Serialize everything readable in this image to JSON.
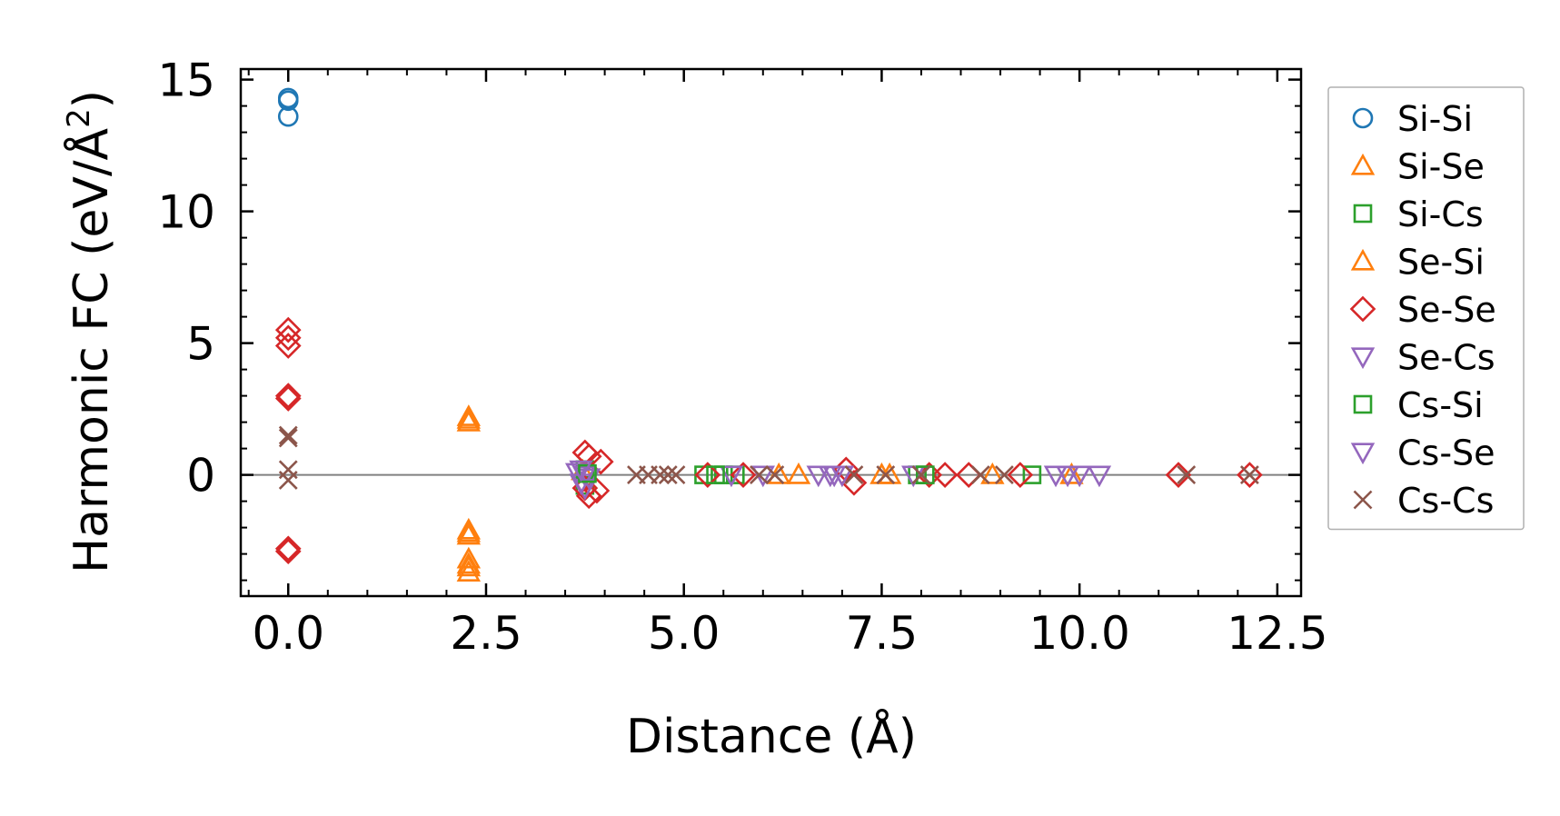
{
  "chart_data": {
    "type": "scatter",
    "title": "",
    "xlabel": "Distance (Å)",
    "ylabel_main": "Harmonic FC (eV/Å",
    "ylabel_sup": "2",
    "ylabel_close": ")",
    "xlim": [
      -0.6,
      12.8
    ],
    "ylim": [
      -4.6,
      15.4
    ],
    "xticks": [
      0.0,
      2.5,
      5.0,
      7.5,
      10.0,
      12.5
    ],
    "xtick_labels": [
      "0.0",
      "2.5",
      "5.0",
      "7.5",
      "10.0",
      "12.5"
    ],
    "yticks": [
      0,
      5,
      10,
      15
    ],
    "ytick_labels": [
      "0",
      "5",
      "10",
      "15"
    ],
    "reference_line_y": 0,
    "legend_position": "outside-right",
    "series": [
      {
        "name": "Si-Si",
        "marker": "circle",
        "color": "#1f77b4",
        "points": [
          [
            0.0,
            14.3
          ],
          [
            0.0,
            14.2
          ],
          [
            0.0,
            13.6
          ]
        ]
      },
      {
        "name": "Si-Se",
        "marker": "triangle-up",
        "color": "#ff7f0e",
        "points": [
          [
            2.28,
            2.2
          ],
          [
            2.28,
            2.0
          ],
          [
            2.28,
            -2.1
          ],
          [
            2.28,
            -2.3
          ],
          [
            2.28,
            -3.2
          ],
          [
            2.28,
            -3.5
          ],
          [
            2.28,
            -3.7
          ],
          [
            3.72,
            0.15
          ],
          [
            6.2,
            0.0
          ],
          [
            6.45,
            0.0
          ],
          [
            7.5,
            0.0
          ],
          [
            8.9,
            0.0
          ],
          [
            9.9,
            0.0
          ]
        ]
      },
      {
        "name": "Si-Cs",
        "marker": "square",
        "color": "#2ca02c",
        "points": [
          [
            3.75,
            0.2
          ],
          [
            3.75,
            -0.4
          ],
          [
            5.25,
            0.0
          ],
          [
            5.5,
            0.0
          ],
          [
            5.65,
            0.0
          ],
          [
            7.95,
            0.0
          ],
          [
            9.4,
            0.0
          ]
        ]
      },
      {
        "name": "Se-Si",
        "marker": "triangle-up",
        "color": "#ff7f0e",
        "points": [
          [
            2.28,
            2.1
          ],
          [
            2.28,
            -2.2
          ],
          [
            2.28,
            -3.4
          ],
          [
            7.6,
            0.0
          ]
        ]
      },
      {
        "name": "Se-Se",
        "marker": "diamond",
        "color": "#d62728",
        "points": [
          [
            0.0,
            5.5
          ],
          [
            0.0,
            5.2
          ],
          [
            0.0,
            4.9
          ],
          [
            0.0,
            3.0
          ],
          [
            0.0,
            2.9
          ],
          [
            0.0,
            -2.8
          ],
          [
            0.0,
            -2.9
          ],
          [
            3.75,
            0.85
          ],
          [
            3.8,
            0.7
          ],
          [
            3.95,
            0.5
          ],
          [
            3.75,
            -0.5
          ],
          [
            3.8,
            -0.8
          ],
          [
            3.9,
            -0.6
          ],
          [
            5.3,
            0.0
          ],
          [
            5.75,
            0.0
          ],
          [
            7.05,
            0.2
          ],
          [
            7.15,
            -0.3
          ],
          [
            8.1,
            0.0
          ],
          [
            8.3,
            0.0
          ],
          [
            8.6,
            0.0
          ],
          [
            9.25,
            0.0
          ],
          [
            11.25,
            0.0
          ],
          [
            12.15,
            0.0
          ]
        ]
      },
      {
        "name": "Se-Cs",
        "marker": "triangle-down",
        "color": "#9467bd",
        "points": [
          [
            3.65,
            0.1
          ],
          [
            3.75,
            0.0
          ],
          [
            3.8,
            -0.1
          ],
          [
            3.7,
            -0.3
          ],
          [
            3.75,
            -0.5
          ],
          [
            5.6,
            0.0
          ],
          [
            6.0,
            0.0
          ],
          [
            6.7,
            0.0
          ],
          [
            6.85,
            0.0
          ],
          [
            7.0,
            0.0
          ],
          [
            7.9,
            0.0
          ],
          [
            9.7,
            0.0
          ],
          [
            10.0,
            0.0
          ],
          [
            10.25,
            0.0
          ]
        ]
      },
      {
        "name": "Cs-Si",
        "marker": "square",
        "color": "#2ca02c",
        "points": [
          [
            3.78,
            0.05
          ],
          [
            5.4,
            0.0
          ],
          [
            8.05,
            0.0
          ]
        ]
      },
      {
        "name": "Cs-Se",
        "marker": "triangle-down",
        "color": "#9467bd",
        "points": [
          [
            3.7,
            0.2
          ],
          [
            6.9,
            0.0
          ],
          [
            9.85,
            0.0
          ]
        ]
      },
      {
        "name": "Cs-Cs",
        "marker": "x",
        "color": "#8c564b",
        "points": [
          [
            0.0,
            1.5
          ],
          [
            0.0,
            1.4
          ],
          [
            0.0,
            0.2
          ],
          [
            0.0,
            -0.2
          ],
          [
            4.4,
            0.0
          ],
          [
            4.55,
            0.0
          ],
          [
            4.7,
            0.0
          ],
          [
            4.8,
            0.0
          ],
          [
            4.9,
            0.0
          ],
          [
            5.95,
            0.0
          ],
          [
            6.15,
            0.0
          ],
          [
            7.15,
            0.0
          ],
          [
            7.55,
            0.0
          ],
          [
            8.0,
            0.0
          ],
          [
            8.75,
            0.0
          ],
          [
            9.05,
            0.0
          ],
          [
            11.35,
            0.0
          ],
          [
            12.15,
            0.0
          ]
        ]
      }
    ]
  }
}
